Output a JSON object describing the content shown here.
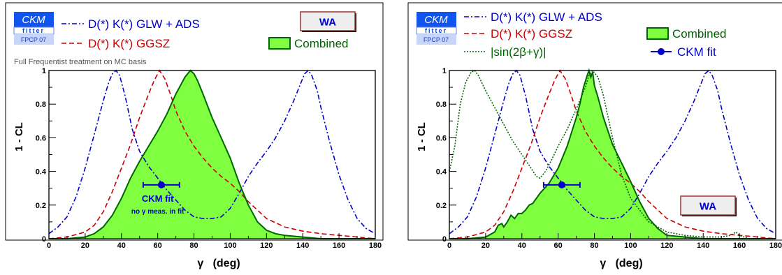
{
  "chart_data": [
    {
      "type": "line",
      "xlabel": "γ   (deg)",
      "ylabel": "1 - CL",
      "xlim": [
        0,
        180
      ],
      "ylim": [
        0,
        1
      ],
      "xticks": [
        "0",
        "20",
        "40",
        "60",
        "80",
        "100",
        "120",
        "140",
        "160",
        "180"
      ],
      "yticks": [
        "0",
        "0.2",
        "0.4",
        "0.6",
        "0.8",
        "1"
      ],
      "logo": {
        "line1": "CKM",
        "line2": "fitter",
        "line3": "FPCP 07"
      },
      "badge": "WA",
      "note": "Full Frequentist treatment on MC basis",
      "legend": [
        "D(*) K(*) GLW + ADS",
        "D(*) K(*) GGSZ",
        "Combined"
      ],
      "annotation": {
        "title": "CKM fit",
        "subtitle": "no γ meas. in fit"
      },
      "point": {
        "x": 62,
        "y": 0.32,
        "xerr": [
          52,
          72
        ]
      },
      "series": [
        {
          "name": "D(*) K(*) GLW + ADS",
          "color": "#0000cc",
          "style": "dashdot",
          "x": [
            0,
            5,
            10,
            15,
            20,
            25,
            30,
            33,
            35,
            37,
            39,
            42,
            46,
            50,
            55,
            60,
            65,
            70,
            75,
            80,
            85,
            90,
            95,
            100,
            105,
            110,
            115,
            120,
            125,
            130,
            135,
            138,
            141,
            143,
            145,
            148,
            150,
            155,
            160,
            165,
            170,
            175,
            180
          ],
          "y": [
            0.03,
            0.07,
            0.13,
            0.25,
            0.42,
            0.62,
            0.82,
            0.93,
            0.98,
            1.0,
            0.97,
            0.85,
            0.65,
            0.52,
            0.43,
            0.36,
            0.29,
            0.23,
            0.17,
            0.13,
            0.12,
            0.12,
            0.13,
            0.18,
            0.27,
            0.37,
            0.45,
            0.52,
            0.6,
            0.7,
            0.82,
            0.9,
            0.98,
            1.0,
            0.97,
            0.88,
            0.78,
            0.57,
            0.38,
            0.23,
            0.12,
            0.06,
            0.03
          ]
        },
        {
          "name": "D(*) K(*) GGSZ",
          "color": "#cc0000",
          "style": "dashed",
          "x": [
            0,
            10,
            20,
            25,
            30,
            35,
            40,
            45,
            50,
            55,
            58,
            61,
            64,
            67,
            70,
            75,
            80,
            85,
            90,
            95,
            100,
            105,
            110,
            115,
            120,
            130,
            140,
            150,
            160,
            170,
            180
          ],
          "y": [
            0.0,
            0.01,
            0.04,
            0.08,
            0.16,
            0.28,
            0.42,
            0.56,
            0.72,
            0.86,
            0.94,
            1.0,
            0.95,
            0.86,
            0.76,
            0.64,
            0.55,
            0.48,
            0.42,
            0.37,
            0.33,
            0.28,
            0.22,
            0.17,
            0.12,
            0.07,
            0.045,
            0.03,
            0.02,
            0.01,
            0.0
          ]
        },
        {
          "name": "Combined",
          "color": "#006600",
          "fill": "#80ff40",
          "style": "solid",
          "x": [
            0,
            10,
            20,
            25,
            30,
            35,
            40,
            45,
            50,
            55,
            60,
            65,
            70,
            75,
            78,
            80,
            82,
            85,
            90,
            95,
            100,
            105,
            110,
            115,
            120,
            125,
            130,
            140,
            150,
            160,
            170,
            180
          ],
          "y": [
            0.0,
            0.0,
            0.01,
            0.03,
            0.07,
            0.14,
            0.24,
            0.36,
            0.46,
            0.55,
            0.64,
            0.74,
            0.86,
            0.96,
            1.0,
            0.98,
            0.94,
            0.86,
            0.72,
            0.6,
            0.48,
            0.33,
            0.2,
            0.1,
            0.05,
            0.03,
            0.02,
            0.01,
            0.0,
            0.0,
            0.0,
            0.0
          ]
        }
      ]
    },
    {
      "type": "line",
      "xlabel": "γ   (deg)",
      "ylabel": "1 - CL",
      "xlim": [
        0,
        180
      ],
      "ylim": [
        0,
        1
      ],
      "xticks": [
        "0",
        "20",
        "40",
        "60",
        "80",
        "100",
        "120",
        "140",
        "160",
        "180"
      ],
      "yticks": [
        "0",
        "0.2",
        "0.4",
        "0.6",
        "0.8",
        "1"
      ],
      "logo": {
        "line1": "CKM",
        "line2": "fitter",
        "line3": "FPCP 07"
      },
      "badge": "WA",
      "legend": [
        "D(*) K(*) GLW + ADS",
        "D(*) K(*) GGSZ",
        "Combined",
        "|sin(2β+γ)|",
        "CKM fit"
      ],
      "point": {
        "x": 62,
        "y": 0.32,
        "xerr": [
          52,
          72
        ]
      },
      "series": [
        {
          "name": "D(*) K(*) GLW + ADS",
          "color": "#0000cc",
          "style": "dashdot",
          "x": [
            0,
            5,
            10,
            15,
            20,
            25,
            30,
            33,
            35,
            37,
            39,
            42,
            46,
            50,
            55,
            60,
            65,
            70,
            75,
            80,
            85,
            90,
            95,
            100,
            105,
            110,
            115,
            120,
            125,
            130,
            135,
            138,
            141,
            143,
            145,
            148,
            150,
            155,
            160,
            165,
            170,
            175,
            180
          ],
          "y": [
            0.03,
            0.07,
            0.13,
            0.25,
            0.42,
            0.62,
            0.82,
            0.93,
            0.98,
            1.0,
            0.97,
            0.85,
            0.65,
            0.52,
            0.43,
            0.36,
            0.29,
            0.23,
            0.17,
            0.13,
            0.12,
            0.12,
            0.13,
            0.18,
            0.27,
            0.37,
            0.45,
            0.52,
            0.6,
            0.7,
            0.82,
            0.9,
            0.98,
            1.0,
            0.97,
            0.88,
            0.78,
            0.57,
            0.38,
            0.23,
            0.12,
            0.06,
            0.03
          ]
        },
        {
          "name": "D(*) K(*) GGSZ",
          "color": "#cc0000",
          "style": "dashed",
          "x": [
            0,
            10,
            20,
            25,
            30,
            35,
            40,
            45,
            50,
            55,
            58,
            61,
            64,
            67,
            70,
            75,
            80,
            85,
            90,
            95,
            100,
            105,
            110,
            115,
            120,
            130,
            140,
            150,
            160,
            170,
            180
          ],
          "y": [
            0.0,
            0.01,
            0.04,
            0.08,
            0.16,
            0.28,
            0.42,
            0.56,
            0.72,
            0.86,
            0.94,
            1.0,
            0.95,
            0.86,
            0.76,
            0.64,
            0.55,
            0.48,
            0.42,
            0.37,
            0.33,
            0.28,
            0.22,
            0.17,
            0.12,
            0.07,
            0.045,
            0.03,
            0.02,
            0.01,
            0.0
          ]
        },
        {
          "name": "|sin(2β+γ)|",
          "color": "#006600",
          "style": "dotted",
          "x": [
            0,
            3,
            6,
            9,
            12,
            14,
            16,
            20,
            25,
            30,
            35,
            40,
            45,
            48,
            50,
            53,
            56,
            60,
            65,
            70,
            75,
            77,
            79,
            82,
            85,
            90,
            95,
            100,
            110,
            120,
            130,
            140,
            150,
            155,
            158,
            160,
            165,
            170,
            180
          ],
          "y": [
            0.4,
            0.55,
            0.8,
            0.93,
            0.99,
            1.0,
            0.97,
            0.88,
            0.78,
            0.68,
            0.58,
            0.5,
            0.42,
            0.37,
            0.36,
            0.4,
            0.46,
            0.55,
            0.65,
            0.77,
            0.9,
            0.97,
            1.0,
            0.96,
            0.85,
            0.6,
            0.38,
            0.24,
            0.1,
            0.04,
            0.02,
            0.01,
            0.01,
            0.02,
            0.04,
            0.02,
            0.0,
            0.0,
            0.0
          ]
        },
        {
          "name": "Combined",
          "color": "#006600",
          "fill": "#80ff40",
          "style": "solid",
          "x": [
            0,
            10,
            20,
            25,
            27,
            29,
            30,
            32,
            34,
            36,
            38,
            40,
            42,
            44,
            46,
            48,
            50,
            55,
            60,
            65,
            70,
            72,
            74,
            76,
            77,
            78,
            79,
            80,
            82,
            85,
            90,
            95,
            100,
            105,
            110,
            115,
            120,
            130,
            140,
            150,
            160,
            170,
            180
          ],
          "y": [
            0.0,
            0.0,
            0.01,
            0.04,
            0.08,
            0.09,
            0.07,
            0.1,
            0.14,
            0.12,
            0.15,
            0.15,
            0.17,
            0.2,
            0.21,
            0.24,
            0.27,
            0.33,
            0.42,
            0.55,
            0.72,
            0.8,
            0.9,
            0.97,
            1.0,
            0.96,
            0.99,
            0.91,
            0.84,
            0.72,
            0.56,
            0.45,
            0.34,
            0.22,
            0.12,
            0.06,
            0.02,
            0.01,
            0.0,
            0.0,
            0.0,
            0.0,
            0.0
          ]
        }
      ]
    }
  ]
}
